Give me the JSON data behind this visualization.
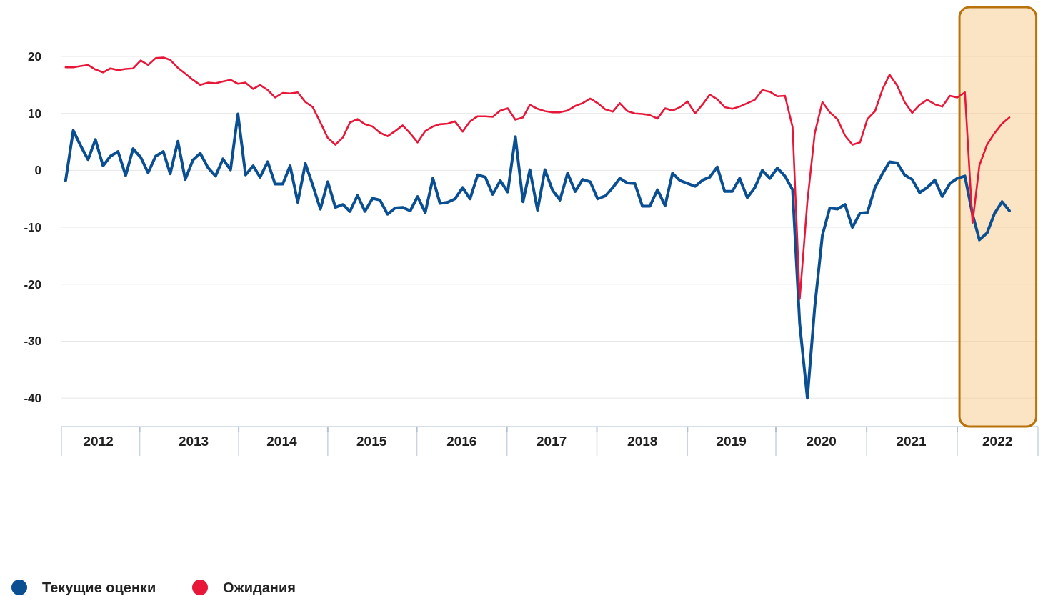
{
  "chart_data": {
    "type": "line",
    "x": [
      "2012-01",
      "2012-02",
      "2012-03",
      "2012-04",
      "2012-05",
      "2012-06",
      "2012-07",
      "2012-08",
      "2012-09",
      "2012-10",
      "2012-11",
      "2012-12",
      "2013-01",
      "2013-02",
      "2013-03",
      "2013-04",
      "2013-05",
      "2013-06",
      "2013-07",
      "2013-08",
      "2013-09",
      "2013-10",
      "2013-11",
      "2013-12",
      "2014-01",
      "2014-02",
      "2014-03",
      "2014-04",
      "2014-05",
      "2014-06",
      "2014-07",
      "2014-08",
      "2014-09",
      "2014-10",
      "2014-11",
      "2014-12",
      "2015-01",
      "2015-02",
      "2015-03",
      "2015-04",
      "2015-05",
      "2015-06",
      "2015-07",
      "2015-08",
      "2015-09",
      "2015-10",
      "2015-11",
      "2015-12",
      "2016-01",
      "2016-02",
      "2016-03",
      "2016-04",
      "2016-05",
      "2016-06",
      "2016-07",
      "2016-08",
      "2016-09",
      "2016-10",
      "2016-11",
      "2016-12",
      "2017-01",
      "2017-02",
      "2017-03",
      "2017-04",
      "2017-05",
      "2017-06",
      "2017-07",
      "2017-08",
      "2017-09",
      "2017-10",
      "2017-11",
      "2017-12",
      "2018-01",
      "2018-02",
      "2018-03",
      "2018-04",
      "2018-05",
      "2018-06",
      "2018-07",
      "2018-08",
      "2018-09",
      "2018-10",
      "2018-11",
      "2018-12",
      "2019-01",
      "2019-02",
      "2019-03",
      "2019-04",
      "2019-05",
      "2019-06",
      "2019-07",
      "2019-08",
      "2019-09",
      "2019-10",
      "2019-11",
      "2019-12",
      "2020-01",
      "2020-02",
      "2020-03",
      "2020-04",
      "2020-05",
      "2020-06",
      "2020-07",
      "2020-08",
      "2020-09",
      "2020-10",
      "2020-11",
      "2020-12",
      "2021-01",
      "2021-02",
      "2021-03",
      "2021-04",
      "2021-05",
      "2021-06",
      "2021-07",
      "2021-08",
      "2021-09",
      "2021-10",
      "2021-11",
      "2021-12",
      "2022-01",
      "2022-02",
      "2022-03",
      "2022-04",
      "2022-05",
      "2022-06",
      "2022-07"
    ],
    "series": [
      {
        "name": "Текущие оценки",
        "color": "#0b4f93",
        "values": [
          -1.8,
          7.0,
          4.4,
          1.9,
          5.4,
          0.8,
          2.5,
          3.3,
          -0.9,
          3.8,
          2.3,
          -0.4,
          2.5,
          3.3,
          -0.6,
          5.1,
          -1.6,
          1.8,
          3.0,
          0.5,
          -1.0,
          2.0,
          0.1,
          9.9,
          -0.8,
          0.8,
          -1.2,
          1.5,
          -2.4,
          -2.4,
          0.8,
          -5.6,
          1.2,
          -2.6,
          -6.8,
          -2.0,
          -6.5,
          -6.0,
          -7.2,
          -4.4,
          -7.2,
          -4.9,
          -5.2,
          -7.7,
          -6.6,
          -6.5,
          -7.1,
          -4.6,
          -7.4,
          -1.4,
          -5.8,
          -5.6,
          -5.0,
          -3.0,
          -5.0,
          -0.8,
          -1.2,
          -4.2,
          -1.8,
          -3.8,
          5.9,
          -5.5,
          0.1,
          -7.0,
          0.1,
          -3.5,
          -5.2,
          -0.5,
          -3.7,
          -1.6,
          -2.0,
          -5.0,
          -4.5,
          -3.0,
          -1.4,
          -2.2,
          -2.3,
          -6.3,
          -6.3,
          -3.4,
          -6.2,
          -0.5,
          -1.8,
          -2.3,
          -2.8,
          -1.7,
          -1.2,
          0.6,
          -3.7,
          -3.7,
          -1.4,
          -4.8,
          -3.0,
          0.0,
          -1.4,
          0.4,
          -1.0,
          -3.4,
          -27.0,
          -40.0,
          -24.0,
          -11.4,
          -6.6,
          -6.8,
          -6.0,
          -10.0,
          -7.5,
          -7.4,
          -3.0,
          -0.5,
          1.5,
          1.3,
          -0.8,
          -1.6,
          -3.9,
          -3.0,
          -1.7,
          -4.6,
          -2.3,
          -1.4,
          -1.0,
          -7.7,
          -12.2,
          -11.0,
          -7.6,
          -5.5,
          -7.1
        ]
      },
      {
        "name": "Ожидания",
        "color": "#e8173a",
        "values": [
          18.1,
          18.1,
          18.3,
          18.5,
          17.7,
          17.2,
          17.9,
          17.6,
          17.8,
          17.9,
          19.3,
          18.5,
          19.7,
          19.8,
          19.4,
          18.0,
          17.0,
          15.9,
          15.0,
          15.4,
          15.3,
          15.6,
          15.9,
          15.2,
          15.4,
          14.3,
          15.0,
          14.1,
          12.8,
          13.6,
          13.5,
          13.7,
          12.0,
          11.1,
          8.4,
          5.7,
          4.5,
          5.8,
          8.4,
          9.0,
          8.1,
          7.7,
          6.6,
          6.0,
          6.9,
          7.9,
          6.5,
          4.9,
          6.9,
          7.7,
          8.1,
          8.2,
          8.6,
          6.8,
          8.6,
          9.5,
          9.5,
          9.4,
          10.5,
          10.9,
          8.9,
          9.3,
          11.5,
          10.8,
          10.4,
          10.2,
          10.2,
          10.5,
          11.3,
          11.8,
          12.6,
          11.8,
          10.7,
          10.3,
          11.8,
          10.4,
          10.0,
          9.9,
          9.7,
          9.1,
          10.9,
          10.5,
          11.1,
          12.1,
          10.0,
          11.6,
          13.3,
          12.5,
          11.1,
          10.8,
          11.2,
          11.8,
          12.4,
          14.1,
          13.8,
          13.0,
          13.1,
          7.6,
          -22.6,
          -5.5,
          6.5,
          12.0,
          10.2,
          9.0,
          6.1,
          4.5,
          4.9,
          9.0,
          10.4,
          14.3,
          16.8,
          14.9,
          12.0,
          10.1,
          11.5,
          12.4,
          11.6,
          11.2,
          13.1,
          12.8,
          13.7,
          -9.2,
          0.9,
          4.5,
          6.5,
          8.2,
          9.3
        ]
      }
    ],
    "xlim": [
      "2011-12-15",
      "2022-10-25"
    ],
    "xticks": [
      {
        "value": "2012-05-13",
        "label": "2012"
      },
      {
        "value": "2012-10-28",
        "label": null
      },
      {
        "value": "2013-06-04",
        "label": "2013"
      },
      {
        "value": "2013-12-04",
        "label": null
      },
      {
        "value": "2014-05-28",
        "label": "2014"
      },
      {
        "value": "2014-12-01",
        "label": null
      },
      {
        "value": "2015-05-28",
        "label": "2015"
      },
      {
        "value": "2015-11-28",
        "label": null
      },
      {
        "value": "2016-05-28",
        "label": "2016"
      },
      {
        "value": "2016-11-28",
        "label": null
      },
      {
        "value": "2017-05-28",
        "label": "2017"
      },
      {
        "value": "2017-11-28",
        "label": null
      },
      {
        "value": "2018-06-01",
        "label": "2018"
      },
      {
        "value": "2018-12-01",
        "label": null
      },
      {
        "value": "2019-05-28",
        "label": "2019"
      },
      {
        "value": "2019-11-25",
        "label": null
      },
      {
        "value": "2020-05-28",
        "label": "2020"
      },
      {
        "value": "2020-11-28",
        "label": null
      },
      {
        "value": "2021-05-28",
        "label": "2021"
      },
      {
        "value": "2021-12-01",
        "label": null
      },
      {
        "value": "2022-05-13",
        "label": "2022"
      }
    ],
    "ylim": [
      -45,
      20
    ],
    "yticks": [
      -40,
      -30,
      -20,
      -10,
      0,
      10,
      20
    ],
    "grid": "y",
    "legend": "bottom",
    "bands": [
      {
        "axis": "x",
        "from": "2021-12-10",
        "to": "2022-10-18",
        "color": "#f7c98a"
      }
    ]
  }
}
